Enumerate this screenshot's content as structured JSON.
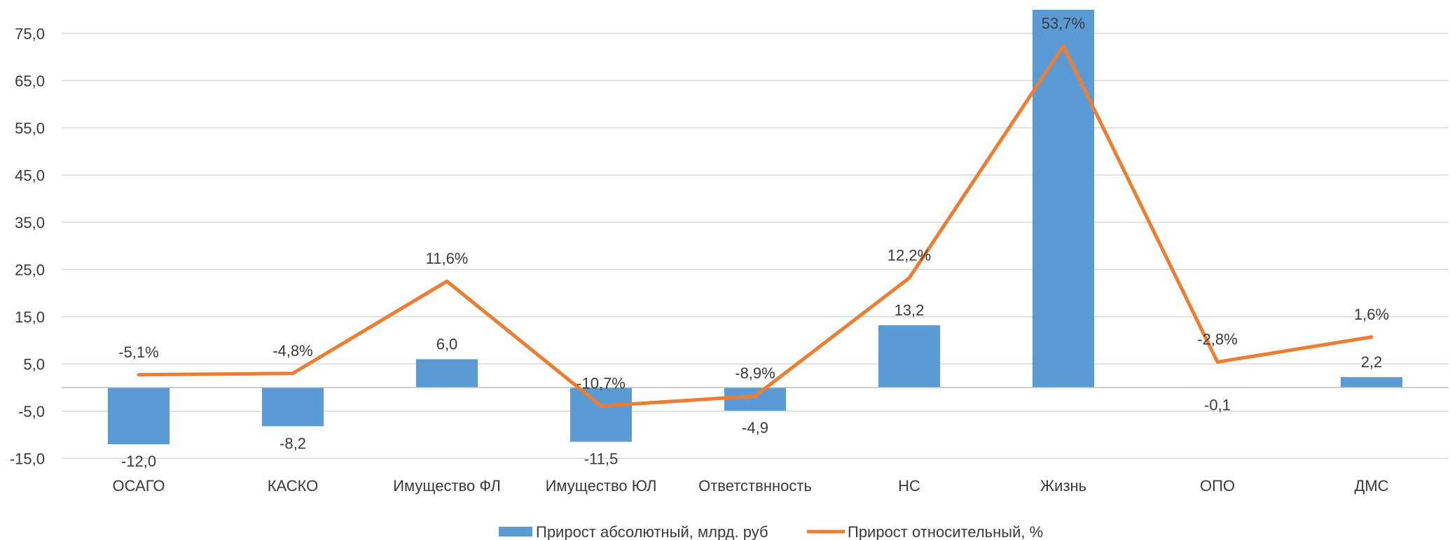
{
  "chart_data": {
    "type": "bar",
    "categories": [
      "ОСАГО",
      "КАСКО",
      "Имущество ФЛ",
      "Имущество ЮЛ",
      "Ответствнность",
      "НС",
      "Жизнь",
      "ОПО",
      "ДМС"
    ],
    "series": [
      {
        "name": "Прирост абсолютный, млрд. руб",
        "type": "bar",
        "values": [
          -12.0,
          -8.2,
          6.0,
          -11.5,
          -4.9,
          13.2,
          80.0,
          -0.1,
          2.2
        ],
        "labels": [
          "-12,0",
          "-8,2",
          "6,0",
          "-11,5",
          "-4,9",
          "13,2",
          "",
          "-0,1",
          "2,2"
        ]
      },
      {
        "name": "Прирост относительный, %",
        "type": "line",
        "values": [
          2.7,
          3.0,
          22.5,
          -3.9,
          -1.8,
          23.2,
          72.3,
          5.4,
          10.7
        ],
        "labels": [
          "-5,1%",
          "-4,8%",
          "11,6%",
          "-10,7%",
          "-8,9%",
          "12,2%",
          "53,7%",
          "-2,8%",
          "1,6%"
        ]
      }
    ],
    "y_ticks": [
      "75,0",
      "65,0",
      "55,0",
      "45,0",
      "35,0",
      "25,0",
      "15,0",
      "5,0",
      "-5,0",
      "-15,0"
    ],
    "ylim": [
      -15,
      80
    ],
    "grid": true,
    "legend_position": "bottom",
    "colors": {
      "bar": "#5b9bd5",
      "line": "#ed7d31",
      "grid": "#d9d9d9",
      "axis": "#bfbfbf",
      "text": "#3a3a3a"
    }
  }
}
